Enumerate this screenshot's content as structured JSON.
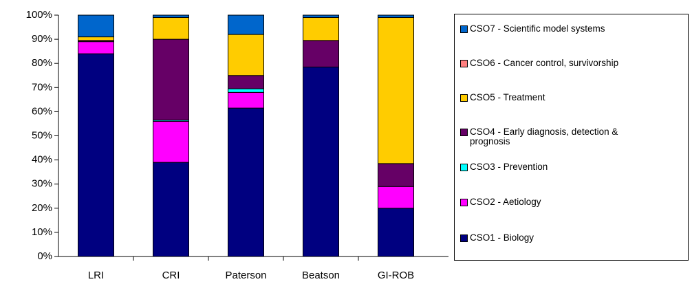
{
  "chart_data": {
    "type": "stacked_bar",
    "categories": [
      "LRI",
      "CRI",
      "Paterson",
      "Beatson",
      "GI-ROB"
    ],
    "series": [
      {
        "name": "CSO1 - Biology",
        "color": "#000080",
        "values": [
          84,
          39,
          61.5,
          78.5,
          20
        ]
      },
      {
        "name": "CSO2 - Aetiology",
        "color": "#ff00ff",
        "values": [
          5,
          17,
          6.5,
          0,
          9
        ]
      },
      {
        "name": "CSO3 - Prevention",
        "color": "#00ffff",
        "values": [
          0,
          0.5,
          1.5,
          0,
          0
        ]
      },
      {
        "name": "CSO4 - Early diagnosis, detection & prognosis",
        "color": "#660066",
        "values": [
          0.5,
          33.5,
          5.5,
          11,
          9.5
        ]
      },
      {
        "name": "CSO5 - Treatment",
        "color": "#ffcc00",
        "values": [
          1.5,
          9,
          17,
          9.5,
          60.5
        ]
      },
      {
        "name": "CSO6 - Cancer control, survivorship",
        "color": "#ff8080",
        "values": [
          0,
          0,
          0,
          0,
          0
        ]
      },
      {
        "name": "CSO7 - Scientific model systems",
        "color": "#0066cc",
        "values": [
          9,
          1,
          8,
          1,
          1
        ]
      }
    ],
    "ylim": [
      0,
      100
    ],
    "yticks": [
      {
        "value": 0,
        "label": "0%"
      },
      {
        "value": 10,
        "label": "10%"
      },
      {
        "value": 20,
        "label": "20%"
      },
      {
        "value": 30,
        "label": "30%"
      },
      {
        "value": 40,
        "label": "40%"
      },
      {
        "value": 50,
        "label": "50%"
      },
      {
        "value": 60,
        "label": "60%"
      },
      {
        "value": 70,
        "label": "70%"
      },
      {
        "value": 80,
        "label": "80%"
      },
      {
        "value": 90,
        "label": "90%"
      },
      {
        "value": 100,
        "label": "100%"
      }
    ],
    "legend": "right"
  }
}
